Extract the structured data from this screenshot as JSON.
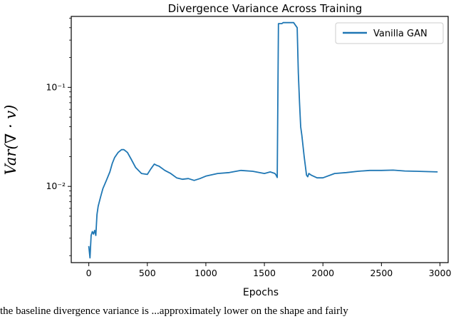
{
  "chart_data": {
    "type": "line",
    "title": "Divergence Variance Across Training",
    "xlabel": "Epochs",
    "ylabel": "Var(∇ · v)",
    "yscale": "log",
    "xlim": [
      -150,
      3070
    ],
    "ylim": [
      0.0017,
      0.52
    ],
    "xticks": [
      0,
      500,
      1000,
      1500,
      2000,
      2500,
      3000
    ],
    "xtick_labels": [
      "0",
      "500",
      "1000",
      "1500",
      "2000",
      "2500",
      "3000"
    ],
    "yticks": [
      0.01,
      0.1
    ],
    "ytick_labels": [
      "10⁻²",
      "10⁻¹"
    ],
    "grid": false,
    "legend_position": "top-right",
    "series": [
      {
        "name": "Vanilla GAN",
        "color": "#1f77b4",
        "x": [
          0,
          10,
          20,
          30,
          40,
          50,
          60,
          70,
          80,
          100,
          120,
          150,
          180,
          200,
          220,
          250,
          280,
          300,
          330,
          360,
          400,
          450,
          500,
          530,
          560,
          580,
          600,
          650,
          700,
          750,
          800,
          850,
          900,
          950,
          1000,
          1100,
          1200,
          1300,
          1400,
          1500,
          1550,
          1590,
          1600,
          1610,
          1620,
          1650,
          1660,
          1680,
          1700,
          1750,
          1780,
          1790,
          1800,
          1810,
          1820,
          1840,
          1860,
          1870,
          1880,
          1900,
          1950,
          2000,
          2100,
          2200,
          2300,
          2400,
          2500,
          2600,
          2700,
          2800,
          2900,
          2980
        ],
        "y": [
          0.0025,
          0.0019,
          0.0032,
          0.0035,
          0.0033,
          0.0036,
          0.0032,
          0.0052,
          0.0063,
          0.0078,
          0.0095,
          0.0115,
          0.014,
          0.017,
          0.0195,
          0.022,
          0.0235,
          0.0235,
          0.022,
          0.019,
          0.0155,
          0.0135,
          0.0132,
          0.015,
          0.0168,
          0.0163,
          0.016,
          0.0145,
          0.0135,
          0.0122,
          0.0118,
          0.012,
          0.0115,
          0.012,
          0.0127,
          0.0135,
          0.0138,
          0.0145,
          0.0142,
          0.0135,
          0.014,
          0.0135,
          0.013,
          0.0123,
          0.44,
          0.44,
          0.45,
          0.45,
          0.45,
          0.45,
          0.4,
          0.14,
          0.07,
          0.04,
          0.033,
          0.02,
          0.013,
          0.0125,
          0.0135,
          0.013,
          0.0122,
          0.0122,
          0.0135,
          0.0138,
          0.0142,
          0.0145,
          0.0145,
          0.0146,
          0.0143,
          0.0142,
          0.0141,
          0.014
        ]
      }
    ]
  },
  "caption": "the baseline divergence variance is ...approximately lower on the shape and fairly"
}
